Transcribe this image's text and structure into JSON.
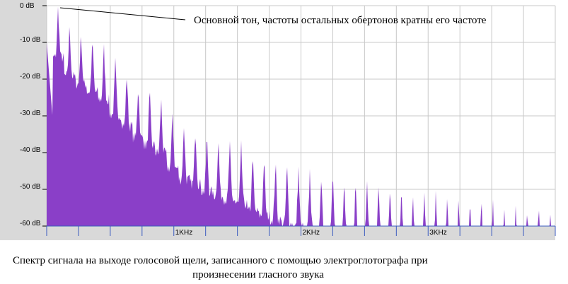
{
  "chart_data": {
    "type": "area",
    "annotation": "Основной тон, частоты остальных обертонов кратны его частоте",
    "y_tick_labels": [
      "0 dB",
      "-10 dB",
      "-20 dB",
      "-30 dB",
      "-40 dB",
      "-50 dB",
      "-60 dB"
    ],
    "y_ticks": [
      0,
      -10,
      -20,
      -30,
      -40,
      -50,
      -60
    ],
    "ylim": [
      -60,
      0
    ],
    "x_tick_labels": [
      "1KHz",
      "2KHz",
      "3KHz"
    ],
    "x_ticks": [
      1000,
      2000,
      3000
    ],
    "xlim": [
      0,
      4000
    ],
    "grid": true,
    "fundamental_hz": 90,
    "series": [
      {
        "values": [
          {
            "x": 0,
            "y": -6
          },
          {
            "x": 30,
            "y": -30
          },
          {
            "x": 90,
            "y": 0
          },
          {
            "x": 180,
            "y": -5
          },
          {
            "x": 270,
            "y": -7
          },
          {
            "x": 360,
            "y": -9
          },
          {
            "x": 450,
            "y": -11
          },
          {
            "x": 540,
            "y": -15
          },
          {
            "x": 630,
            "y": -18
          },
          {
            "x": 720,
            "y": -21
          },
          {
            "x": 810,
            "y": -23
          },
          {
            "x": 900,
            "y": -25
          },
          {
            "x": 990,
            "y": -29
          },
          {
            "x": 1080,
            "y": -32
          },
          {
            "x": 1170,
            "y": -33
          },
          {
            "x": 1260,
            "y": -35
          },
          {
            "x": 1350,
            "y": -36
          },
          {
            "x": 1440,
            "y": -37
          },
          {
            "x": 1530,
            "y": -38
          },
          {
            "x": 1620,
            "y": -40
          },
          {
            "x": 1710,
            "y": -41
          },
          {
            "x": 1800,
            "y": -42
          },
          {
            "x": 1890,
            "y": -43
          },
          {
            "x": 2000,
            "y": -44
          },
          {
            "x": 2250,
            "y": -46
          },
          {
            "x": 2500,
            "y": -48
          },
          {
            "x": 2750,
            "y": -49
          },
          {
            "x": 3000,
            "y": -51
          },
          {
            "x": 3250,
            "y": -52
          },
          {
            "x": 3500,
            "y": -53
          },
          {
            "x": 3750,
            "y": -54
          },
          {
            "x": 4000,
            "y": -55
          }
        ]
      }
    ],
    "fill_color": "#8a3fc8",
    "plot_bg": "#ffffff",
    "axis_panel_color": "#d9d9d9"
  },
  "caption": {
    "line1": "Спектр сигнала на выходе голосовой щели, записанного с помощью электроглотографа при",
    "line2": "произнесении гласного звука"
  }
}
